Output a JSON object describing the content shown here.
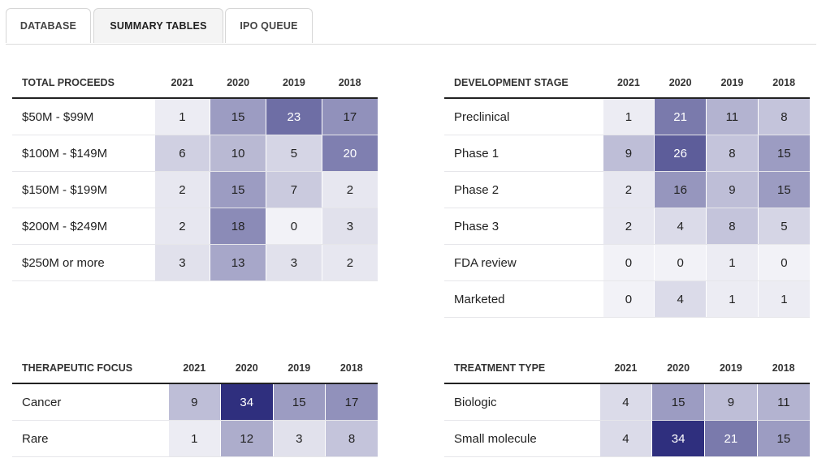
{
  "tabs": [
    {
      "label": "DATABASE",
      "active": false
    },
    {
      "label": "SUMMARY TABLES",
      "active": true
    },
    {
      "label": "IPO QUEUE",
      "active": false
    }
  ],
  "heat_colors": {
    "max_color": "#2f2f7e",
    "min_color": "#f2f2f7"
  },
  "tables": [
    {
      "id": "total-proceeds",
      "title": "TOTAL PROCEEDS",
      "years": [
        "2021",
        "2020",
        "2019",
        "2018"
      ],
      "rows": [
        {
          "label": "$50M - $99M",
          "values": [
            1,
            15,
            23,
            17
          ]
        },
        {
          "label": "$100M - $149M",
          "values": [
            6,
            10,
            5,
            20
          ]
        },
        {
          "label": "$150M - $199M",
          "values": [
            2,
            15,
            7,
            2
          ]
        },
        {
          "label": "$200M - $249M",
          "values": [
            2,
            18,
            0,
            3
          ]
        },
        {
          "label": "$250M or more",
          "values": [
            3,
            13,
            3,
            2
          ]
        }
      ]
    },
    {
      "id": "development-stage",
      "title": "DEVELOPMENT STAGE",
      "years": [
        "2021",
        "2020",
        "2019",
        "2018"
      ],
      "rows": [
        {
          "label": "Preclinical",
          "values": [
            1,
            21,
            11,
            8
          ]
        },
        {
          "label": "Phase 1",
          "values": [
            9,
            26,
            8,
            15
          ]
        },
        {
          "label": "Phase 2",
          "values": [
            2,
            16,
            9,
            15
          ]
        },
        {
          "label": "Phase 3",
          "values": [
            2,
            4,
            8,
            5
          ]
        },
        {
          "label": "FDA review",
          "values": [
            0,
            0,
            1,
            0
          ]
        },
        {
          "label": "Marketed",
          "values": [
            0,
            4,
            1,
            1
          ]
        }
      ]
    },
    {
      "id": "therapeutic-focus",
      "title": "THERAPEUTIC FOCUS",
      "years": [
        "2021",
        "2020",
        "2019",
        "2018"
      ],
      "rows": [
        {
          "label": "Cancer",
          "values": [
            9,
            34,
            15,
            17
          ]
        },
        {
          "label": "Rare",
          "values": [
            1,
            12,
            3,
            8
          ]
        }
      ]
    },
    {
      "id": "treatment-type",
      "title": "TREATMENT TYPE",
      "years": [
        "2021",
        "2020",
        "2019",
        "2018"
      ],
      "rows": [
        {
          "label": "Biologic",
          "values": [
            4,
            15,
            9,
            11
          ]
        },
        {
          "label": "Small molecule",
          "values": [
            4,
            34,
            21,
            15
          ]
        }
      ]
    }
  ]
}
